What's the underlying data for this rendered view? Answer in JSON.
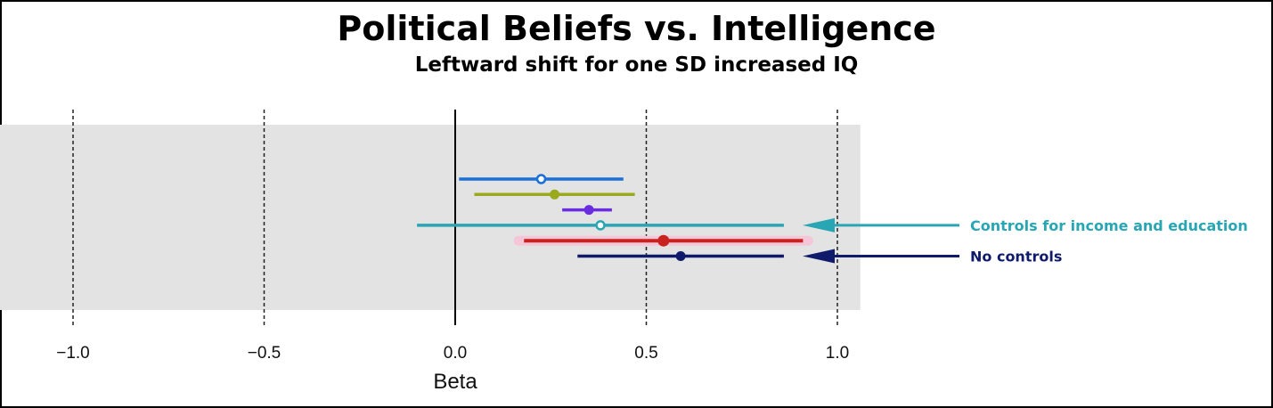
{
  "chart_data": {
    "type": "forest",
    "title": "Political Beliefs vs. Intelligence",
    "subtitle": "Leftward shift for one SD increased IQ",
    "xlabel": "Beta",
    "xlim": [
      -1.2,
      1.06
    ],
    "x_ticks": [
      -1.0,
      -0.5,
      0.0,
      0.5,
      1.0
    ],
    "x_tick_labels": [
      "−1.0",
      "−0.5",
      "0.0",
      "0.5",
      "1.0"
    ],
    "reference_line": 0.0,
    "grid": "dashed vertical",
    "estimates": [
      {
        "beta": 0.225,
        "ci": [
          0.01,
          0.44
        ],
        "color": "#1a6fd8",
        "marker": "open"
      },
      {
        "beta": 0.26,
        "ci": [
          0.05,
          0.47
        ],
        "color": "#9aaa1e",
        "marker": "filled"
      },
      {
        "beta": 0.35,
        "ci": [
          0.28,
          0.41
        ],
        "color": "#6a2ce0",
        "marker": "filled"
      },
      {
        "beta": 0.38,
        "ci": [
          -0.1,
          0.86
        ],
        "color": "#28a6b4",
        "marker": "open"
      },
      {
        "beta": 0.545,
        "ci": [
          0.18,
          0.91
        ],
        "color": "#c8231e",
        "marker": "filled",
        "highlight": "#f5c6d8"
      },
      {
        "beta": 0.59,
        "ci": [
          0.32,
          0.86
        ],
        "color": "#0f1a6b",
        "marker": "filled"
      }
    ],
    "annotations": [
      {
        "text": "Controls for income and education",
        "target": 3,
        "color": "#28a6b4"
      },
      {
        "text": "No controls",
        "target": 5,
        "color": "#0f1a6b"
      }
    ]
  }
}
